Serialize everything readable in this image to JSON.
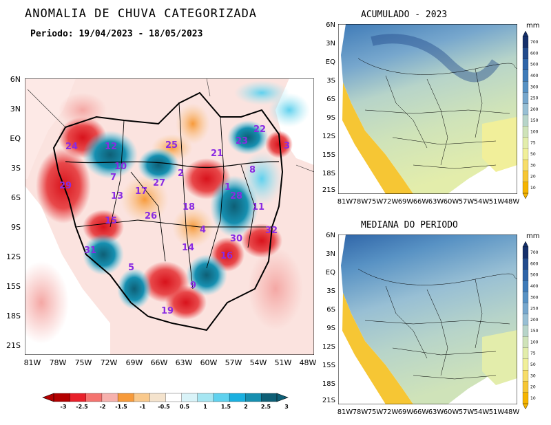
{
  "main_title": "ANOMALIA DE CHUVA CATEGORIZADA",
  "period": "Periodo: 19/04/2023 - 18/05/2023",
  "right_top_title": "ACUMULADO - 2023",
  "right_bottom_title": "MEDIANA DO PERIODO",
  "unit": "mm",
  "lat_labels": [
    "6N",
    "3N",
    "EQ",
    "3S",
    "6S",
    "9S",
    "12S",
    "15S",
    "18S",
    "21S"
  ],
  "lon_labels": [
    "81W",
    "78W",
    "75W",
    "72W",
    "69W",
    "66W",
    "63W",
    "60W",
    "57W",
    "54W",
    "51W",
    "48W"
  ],
  "anomaly_colorbar": {
    "labels": [
      "-3",
      "-2.5",
      "-2",
      "-1.5",
      "-1",
      "-0.5",
      "0.5",
      "1",
      "1.5",
      "2",
      "2.5",
      "3"
    ],
    "colors": [
      "#b30000",
      "#e8202a",
      "#f4736f",
      "#f6b1ad",
      "#f79a3a",
      "#f9c98c",
      "#f4e3cd",
      "#ffffff",
      "#d9f3f8",
      "#a6e6f2",
      "#5fd1ee",
      "#1ab0e0",
      "#168fb0",
      "#0e5f76"
    ]
  },
  "precip_colorbar": {
    "labels": [
      "700",
      "600",
      "500",
      "400",
      "300",
      "250",
      "200",
      "150",
      "100",
      "75",
      "50",
      "30",
      "20",
      "10"
    ],
    "colors": [
      "#16306b",
      "#234b8c",
      "#2f65a8",
      "#3f7bb8",
      "#5892c4",
      "#77a7cd",
      "#98bfd4",
      "#b7d4c9",
      "#cfe3b9",
      "#e3edab",
      "#f1ef9a",
      "#f7dd6a",
      "#f6c634",
      "#f5b400"
    ]
  },
  "basin_labels": [
    "24",
    "12",
    "25",
    "10",
    "21",
    "23",
    "22",
    "3",
    "2",
    "7",
    "1",
    "8",
    "29",
    "17",
    "27",
    "13",
    "18",
    "11",
    "26",
    "32",
    "4",
    "15",
    "30",
    "14",
    "31",
    "16",
    "5",
    "9",
    "19",
    "28"
  ]
}
